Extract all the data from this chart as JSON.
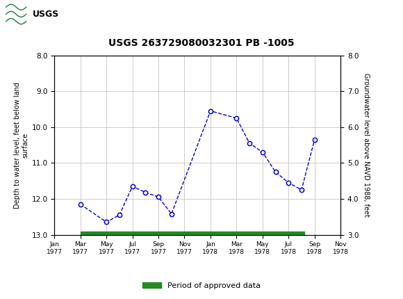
{
  "title": "USGS 263729080032301 PB -1005",
  "ylabel_left": "Depth to water level, feet below land\nsurface",
  "ylabel_right": "Groundwater level above NAVD 1988, feet",
  "yticks_left": [
    8.0,
    9.0,
    10.0,
    11.0,
    12.0,
    13.0
  ],
  "yticks_right": [
    8.0,
    7.0,
    6.0,
    5.0,
    4.0,
    3.0
  ],
  "xtick_labels": [
    "Jan\n1977",
    "Mar\n1977",
    "May\n1977",
    "Jul\n1977",
    "Sep\n1977",
    "Nov\n1977",
    "Jan\n1978",
    "Mar\n1978",
    "May\n1978",
    "Jul\n1978",
    "Sep\n1978",
    "Nov\n1978"
  ],
  "x_data": [
    1,
    2,
    2.5,
    3,
    3.5,
    4,
    4.5,
    6,
    7,
    7.5,
    8,
    8.5,
    9,
    9.5,
    10
  ],
  "y_data": [
    12.15,
    12.65,
    12.45,
    11.65,
    11.82,
    11.95,
    12.42,
    9.55,
    9.75,
    10.45,
    10.7,
    11.25,
    11.55,
    11.75,
    10.35
  ],
  "line_color": "#0000cc",
  "marker_facecolor": "white",
  "marker_edgecolor": "#0000cc",
  "approved_bar_color": "#228B22",
  "header_bg": "#1a7a3c",
  "grid_color": "#cccccc",
  "approved_x_start": 1,
  "approved_x_end": 9.6,
  "xlim": [
    0,
    11
  ],
  "ylim_bottom": 13.0,
  "ylim_top": 8.0,
  "right_ylim_bottom": 3.0,
  "right_ylim_top": 8.0
}
